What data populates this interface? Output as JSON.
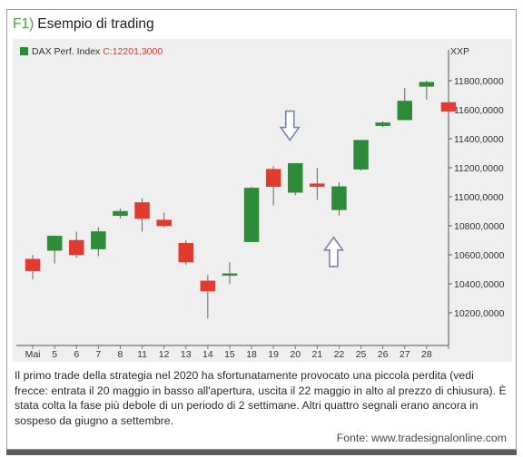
{
  "header": {
    "tag": "F1)",
    "title": "Esempio di trading"
  },
  "legend": {
    "label": "DAX Perf. Index",
    "close_value": "C:12201,3000",
    "ticker": "XXP"
  },
  "caption": "Il primo trade della strategia nel 2020 ha sfortunatamente provocato una piccola perdita (vedi frecce: entrata il 20 maggio in basso all'apertura, uscita il 22 maggio in alto al prezzo di chiusura). È stata colta la fase più debole di un periodo di 2 settimane. Altri quattro segnali erano ancora in sospeso da giugno a settembre.",
  "source": "Fonte: www.tradesignalonline.com",
  "colors": {
    "up": "#2e8b3a",
    "down": "#e13a2f",
    "background": "#efefef",
    "arrow": "#7b82a8"
  },
  "chart_data": {
    "type": "candlestick",
    "title": "DAX Perf. Index",
    "ylim": [
      10000,
      11950
    ],
    "yticks": [
      "10200,0000",
      "10400,0000",
      "10600,0000",
      "10800,0000",
      "11000,0000",
      "11200,0000",
      "11400,0000",
      "11600,0000",
      "11800,0000"
    ],
    "ytick_values": [
      10200,
      10400,
      10600,
      10800,
      11000,
      11200,
      11400,
      11600,
      11800
    ],
    "categories": [
      "Mai",
      "5",
      "6",
      "7",
      "8",
      "11",
      "12",
      "13",
      "14",
      "15",
      "18",
      "19",
      "20",
      "21",
      "22",
      "25",
      "26",
      "27",
      "28",
      ""
    ],
    "candles": [
      {
        "open": 10570,
        "high": 10600,
        "low": 10430,
        "close": 10490
      },
      {
        "open": 10630,
        "high": 10730,
        "low": 10540,
        "close": 10730
      },
      {
        "open": 10700,
        "high": 10760,
        "low": 10580,
        "close": 10600
      },
      {
        "open": 10640,
        "high": 10790,
        "low": 10590,
        "close": 10760
      },
      {
        "open": 10870,
        "high": 10920,
        "low": 10850,
        "close": 10900
      },
      {
        "open": 10960,
        "high": 10990,
        "low": 10760,
        "close": 10850
      },
      {
        "open": 10840,
        "high": 10890,
        "low": 10790,
        "close": 10800
      },
      {
        "open": 10680,
        "high": 10700,
        "low": 10530,
        "close": 10550
      },
      {
        "open": 10420,
        "high": 10460,
        "low": 10160,
        "close": 10350
      },
      {
        "open": 10470,
        "high": 10550,
        "low": 10400,
        "close": 10470
      },
      {
        "open": 10690,
        "high": 11070,
        "low": 10690,
        "close": 11060
      },
      {
        "open": 11190,
        "high": 11210,
        "low": 10940,
        "close": 11070
      },
      {
        "open": 11030,
        "high": 11230,
        "low": 11010,
        "close": 11230
      },
      {
        "open": 11090,
        "high": 11200,
        "low": 10980,
        "close": 11070
      },
      {
        "open": 10910,
        "high": 11100,
        "low": 10870,
        "close": 11070
      },
      {
        "open": 11190,
        "high": 11390,
        "low": 11180,
        "close": 11390
      },
      {
        "open": 11490,
        "high": 11520,
        "low": 11480,
        "close": 11510
      },
      {
        "open": 11530,
        "high": 11750,
        "low": 11530,
        "close": 11660
      },
      {
        "open": 11760,
        "high": 11800,
        "low": 11670,
        "close": 11790
      },
      {
        "open": 11650,
        "high": 11740,
        "low": 11580,
        "close": 11590
      }
    ],
    "annotations": [
      {
        "type": "arrow-down",
        "category": "20",
        "value": 11390
      },
      {
        "type": "arrow-up",
        "category": "22",
        "value": 10720
      }
    ],
    "grid": false
  }
}
